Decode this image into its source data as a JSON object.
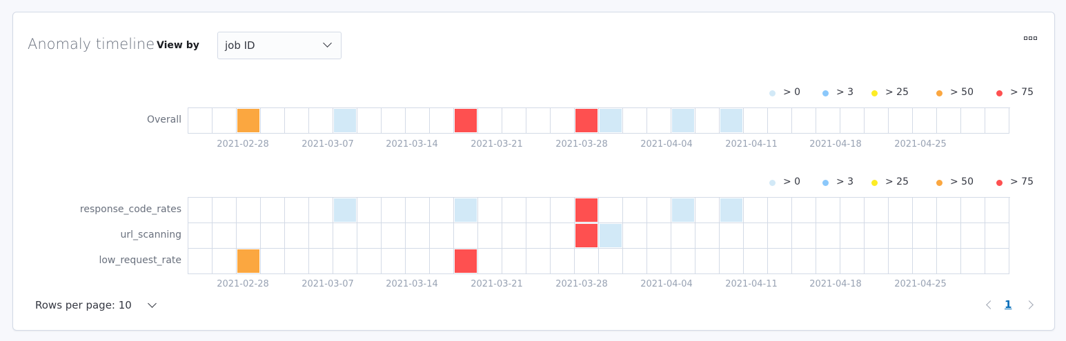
{
  "header": {
    "title": "Anomaly timeline",
    "view_by_label": "View by",
    "view_by_value": "job ID",
    "menu_icon": "ellipsis-icon"
  },
  "legend": [
    {
      "label": "> 0",
      "color": "#d2e9f7"
    },
    {
      "label": "> 3",
      "color": "#8bc8fb"
    },
    {
      "label": "> 25",
      "color": "#fdec25"
    },
    {
      "label": "> 50",
      "color": "#fba740"
    },
    {
      "label": "> 75",
      "color": "#fe5050"
    }
  ],
  "x_ticks": [
    "2021-02-28",
    "2021-03-07",
    "2021-03-14",
    "2021-03-21",
    "2021-03-28",
    "2021-04-04",
    "2021-04-11",
    "2021-04-18",
    "2021-04-25"
  ],
  "overall": {
    "column_count": 34,
    "rows": [
      {
        "label": "Overall",
        "cells": [
          {
            "col": 2,
            "level": 3
          },
          {
            "col": 6,
            "level": 0
          },
          {
            "col": 11,
            "level": 4
          },
          {
            "col": 16,
            "level": 4
          },
          {
            "col": 17,
            "level": 0
          },
          {
            "col": 20,
            "level": 0
          },
          {
            "col": 22,
            "level": 0
          }
        ]
      }
    ]
  },
  "jobs": {
    "column_count": 34,
    "rows": [
      {
        "label": "response_code_rates",
        "cells": [
          {
            "col": 6,
            "level": 0
          },
          {
            "col": 11,
            "level": 0
          },
          {
            "col": 16,
            "level": 4
          },
          {
            "col": 20,
            "level": 0
          },
          {
            "col": 22,
            "level": 0
          }
        ]
      },
      {
        "label": "url_scanning",
        "cells": [
          {
            "col": 16,
            "level": 4
          },
          {
            "col": 17,
            "level": 0
          }
        ]
      },
      {
        "label": "low_request_rate",
        "cells": [
          {
            "col": 2,
            "level": 3
          },
          {
            "col": 11,
            "level": 4
          }
        ]
      }
    ]
  },
  "pagination": {
    "rows_per_page_label": "Rows per page: 10",
    "current_page": "1"
  }
}
